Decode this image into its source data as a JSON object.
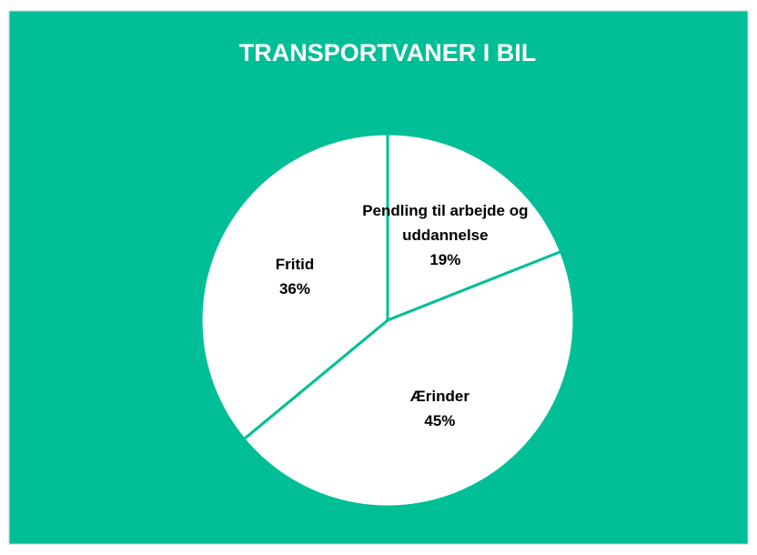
{
  "chart_data": {
    "type": "pie",
    "title": "TRANSPORTVANER I BIL",
    "categories": [
      "Pendling til arbejde og uddannelse",
      "Ærinder",
      "Fritid"
    ],
    "values": [
      19,
      45,
      36
    ],
    "value_labels": [
      "19%",
      "45%",
      "36%"
    ],
    "colors": [
      "#ffffff",
      "#ffffff",
      "#ffffff"
    ],
    "background": "#00bf96"
  }
}
